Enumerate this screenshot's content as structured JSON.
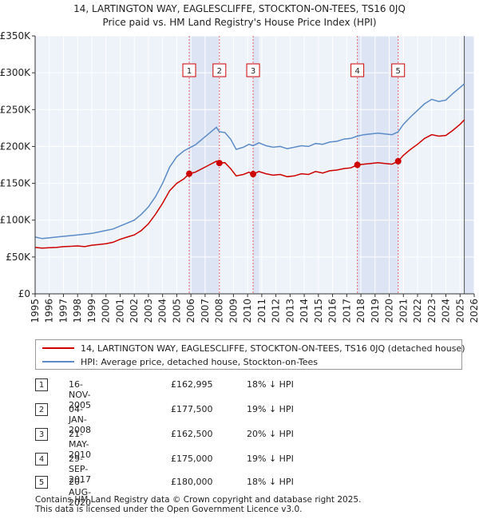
{
  "chart_data": {
    "type": "line",
    "title": "14, LARTINGTON WAY, EAGLESCLIFFE, STOCKTON-ON-TEES, TS16 0JQ",
    "subtitle": "Price paid vs. HM Land Registry's House Price Index (HPI)",
    "xlabel": "",
    "ylabel": "",
    "xlim": [
      1995,
      2026
    ],
    "ylim": [
      0,
      350000
    ],
    "x_ticks": [
      "1995",
      "1996",
      "1997",
      "1998",
      "1999",
      "2000",
      "2001",
      "2002",
      "2003",
      "2004",
      "2005",
      "2006",
      "2007",
      "2008",
      "2009",
      "2010",
      "2011",
      "2012",
      "2013",
      "2014",
      "2015",
      "2016",
      "2017",
      "2018",
      "2019",
      "2020",
      "2021",
      "2022",
      "2023",
      "2024",
      "2025",
      "2026"
    ],
    "y_ticks": [
      {
        "value": 0,
        "label": "£0"
      },
      {
        "value": 50000,
        "label": "£50K"
      },
      {
        "value": 100000,
        "label": "£100K"
      },
      {
        "value": 150000,
        "label": "£150K"
      },
      {
        "value": 200000,
        "label": "£200K"
      },
      {
        "value": 250000,
        "label": "£250K"
      },
      {
        "value": 300000,
        "label": "£300K"
      },
      {
        "value": 350000,
        "label": "£350K"
      }
    ],
    "grid": true,
    "series": [
      {
        "name": "14, LARTINGTON WAY, EAGLESCLIFFE, STOCKTON-ON-TEES, TS16 0JQ (detached house)",
        "color": "#cc0000",
        "points": [
          [
            1995.0,
            63000
          ],
          [
            1995.5,
            62000
          ],
          [
            1996.0,
            62500
          ],
          [
            1996.5,
            63000
          ],
          [
            1997.0,
            64000
          ],
          [
            1997.5,
            64500
          ],
          [
            1998.0,
            65000
          ],
          [
            1998.5,
            64000
          ],
          [
            1999.0,
            66000
          ],
          [
            1999.5,
            67000
          ],
          [
            2000.0,
            68000
          ],
          [
            2000.5,
            70000
          ],
          [
            2001.0,
            74000
          ],
          [
            2001.5,
            77000
          ],
          [
            2002.0,
            80000
          ],
          [
            2002.5,
            86000
          ],
          [
            2003.0,
            95000
          ],
          [
            2003.5,
            108000
          ],
          [
            2004.0,
            123000
          ],
          [
            2004.5,
            140000
          ],
          [
            2005.0,
            150000
          ],
          [
            2005.5,
            156000
          ],
          [
            2005.88,
            162995
          ],
          [
            2006.3,
            165000
          ],
          [
            2006.8,
            170000
          ],
          [
            2007.3,
            175000
          ],
          [
            2007.8,
            180000
          ],
          [
            2008.01,
            177500
          ],
          [
            2008.4,
            178000
          ],
          [
            2008.8,
            170000
          ],
          [
            2009.2,
            160000
          ],
          [
            2009.7,
            162000
          ],
          [
            2010.1,
            165000
          ],
          [
            2010.39,
            162500
          ],
          [
            2010.8,
            166000
          ],
          [
            2011.3,
            163000
          ],
          [
            2011.8,
            161000
          ],
          [
            2012.3,
            162000
          ],
          [
            2012.8,
            159000
          ],
          [
            2013.3,
            160000
          ],
          [
            2013.8,
            163000
          ],
          [
            2014.3,
            162000
          ],
          [
            2014.8,
            166000
          ],
          [
            2015.3,
            164000
          ],
          [
            2015.8,
            167000
          ],
          [
            2016.3,
            168000
          ],
          [
            2016.8,
            170000
          ],
          [
            2017.3,
            171000
          ],
          [
            2017.75,
            175000
          ],
          [
            2018.2,
            176000
          ],
          [
            2018.7,
            177000
          ],
          [
            2019.2,
            178000
          ],
          [
            2019.7,
            177000
          ],
          [
            2020.2,
            176000
          ],
          [
            2020.63,
            180000
          ],
          [
            2021.0,
            188000
          ],
          [
            2021.5,
            196000
          ],
          [
            2022.0,
            203000
          ],
          [
            2022.5,
            211000
          ],
          [
            2023.0,
            216000
          ],
          [
            2023.5,
            214000
          ],
          [
            2024.0,
            215000
          ],
          [
            2024.5,
            222000
          ],
          [
            2025.0,
            230000
          ],
          [
            2025.3,
            236000
          ]
        ]
      },
      {
        "name": "HPI: Average price, detached house, Stockton-on-Tees",
        "color": "#5b8cc8",
        "points": [
          [
            1995.0,
            77000
          ],
          [
            1995.5,
            75000
          ],
          [
            1996.0,
            76000
          ],
          [
            1996.5,
            77000
          ],
          [
            1997.0,
            78000
          ],
          [
            1997.5,
            79000
          ],
          [
            1998.0,
            80000
          ],
          [
            1998.5,
            81000
          ],
          [
            1999.0,
            82000
          ],
          [
            1999.5,
            84000
          ],
          [
            2000.0,
            86000
          ],
          [
            2000.5,
            88000
          ],
          [
            2001.0,
            92000
          ],
          [
            2001.5,
            96000
          ],
          [
            2002.0,
            100000
          ],
          [
            2002.5,
            108000
          ],
          [
            2003.0,
            118000
          ],
          [
            2003.5,
            132000
          ],
          [
            2004.0,
            150000
          ],
          [
            2004.5,
            172000
          ],
          [
            2005.0,
            186000
          ],
          [
            2005.5,
            194000
          ],
          [
            2005.88,
            198000
          ],
          [
            2006.3,
            202000
          ],
          [
            2006.8,
            210000
          ],
          [
            2007.3,
            218000
          ],
          [
            2007.8,
            226000
          ],
          [
            2008.01,
            220000
          ],
          [
            2008.4,
            219000
          ],
          [
            2008.8,
            210000
          ],
          [
            2009.2,
            196000
          ],
          [
            2009.7,
            199000
          ],
          [
            2010.1,
            203000
          ],
          [
            2010.39,
            201000
          ],
          [
            2010.8,
            205000
          ],
          [
            2011.3,
            201000
          ],
          [
            2011.8,
            199000
          ],
          [
            2012.3,
            200000
          ],
          [
            2012.8,
            197000
          ],
          [
            2013.3,
            199000
          ],
          [
            2013.8,
            201000
          ],
          [
            2014.3,
            200000
          ],
          [
            2014.8,
            204000
          ],
          [
            2015.3,
            203000
          ],
          [
            2015.8,
            206000
          ],
          [
            2016.3,
            207000
          ],
          [
            2016.8,
            210000
          ],
          [
            2017.3,
            211000
          ],
          [
            2017.75,
            214000
          ],
          [
            2018.2,
            216000
          ],
          [
            2018.7,
            217000
          ],
          [
            2019.2,
            218000
          ],
          [
            2019.7,
            217000
          ],
          [
            2020.2,
            216000
          ],
          [
            2020.63,
            220000
          ],
          [
            2021.0,
            230000
          ],
          [
            2021.5,
            240000
          ],
          [
            2022.0,
            249000
          ],
          [
            2022.5,
            258000
          ],
          [
            2023.0,
            264000
          ],
          [
            2023.5,
            261000
          ],
          [
            2024.0,
            263000
          ],
          [
            2024.5,
            272000
          ],
          [
            2025.0,
            280000
          ],
          [
            2025.3,
            285000
          ]
        ]
      }
    ],
    "annotations": [
      {
        "label": "1",
        "x": 2005.88,
        "y": 162995
      },
      {
        "label": "2",
        "x": 2008.01,
        "y": 177500
      },
      {
        "label": "3",
        "x": 2010.39,
        "y": 162500
      },
      {
        "label": "4",
        "x": 2017.75,
        "y": 175000
      },
      {
        "label": "5",
        "x": 2020.63,
        "y": 180000
      }
    ],
    "shaded_ranges": [
      [
        2005.88,
        2008.01
      ],
      [
        2010.39,
        2010.8
      ],
      [
        2017.75,
        2020.63
      ],
      [
        2025.3,
        2026
      ]
    ]
  },
  "legend": {
    "series_1_label": "14, LARTINGTON WAY, EAGLESCLIFFE, STOCKTON-ON-TEES, TS16 0JQ (detached house)",
    "series_1_color": "#cc0000",
    "series_2_label": "HPI: Average price, detached house, Stockton-on-Tees",
    "series_2_color": "#5b8cc8"
  },
  "transactions": [
    {
      "num": "1",
      "date": "16-NOV-2005",
      "price": "£162,995",
      "hpi": "18% ↓ HPI"
    },
    {
      "num": "2",
      "date": "04-JAN-2008",
      "price": "£177,500",
      "hpi": "19% ↓ HPI"
    },
    {
      "num": "3",
      "date": "21-MAY-2010",
      "price": "£162,500",
      "hpi": "20% ↓ HPI"
    },
    {
      "num": "4",
      "date": "29-SEP-2017",
      "price": "£175,000",
      "hpi": "19% ↓ HPI"
    },
    {
      "num": "5",
      "date": "20-AUG-2020",
      "price": "£180,000",
      "hpi": "18% ↓ HPI"
    }
  ],
  "footer": {
    "line1": "Contains HM Land Registry data © Crown copyright and database right 2025.",
    "line2": "This data is licensed under the Open Government Licence v3.0."
  }
}
